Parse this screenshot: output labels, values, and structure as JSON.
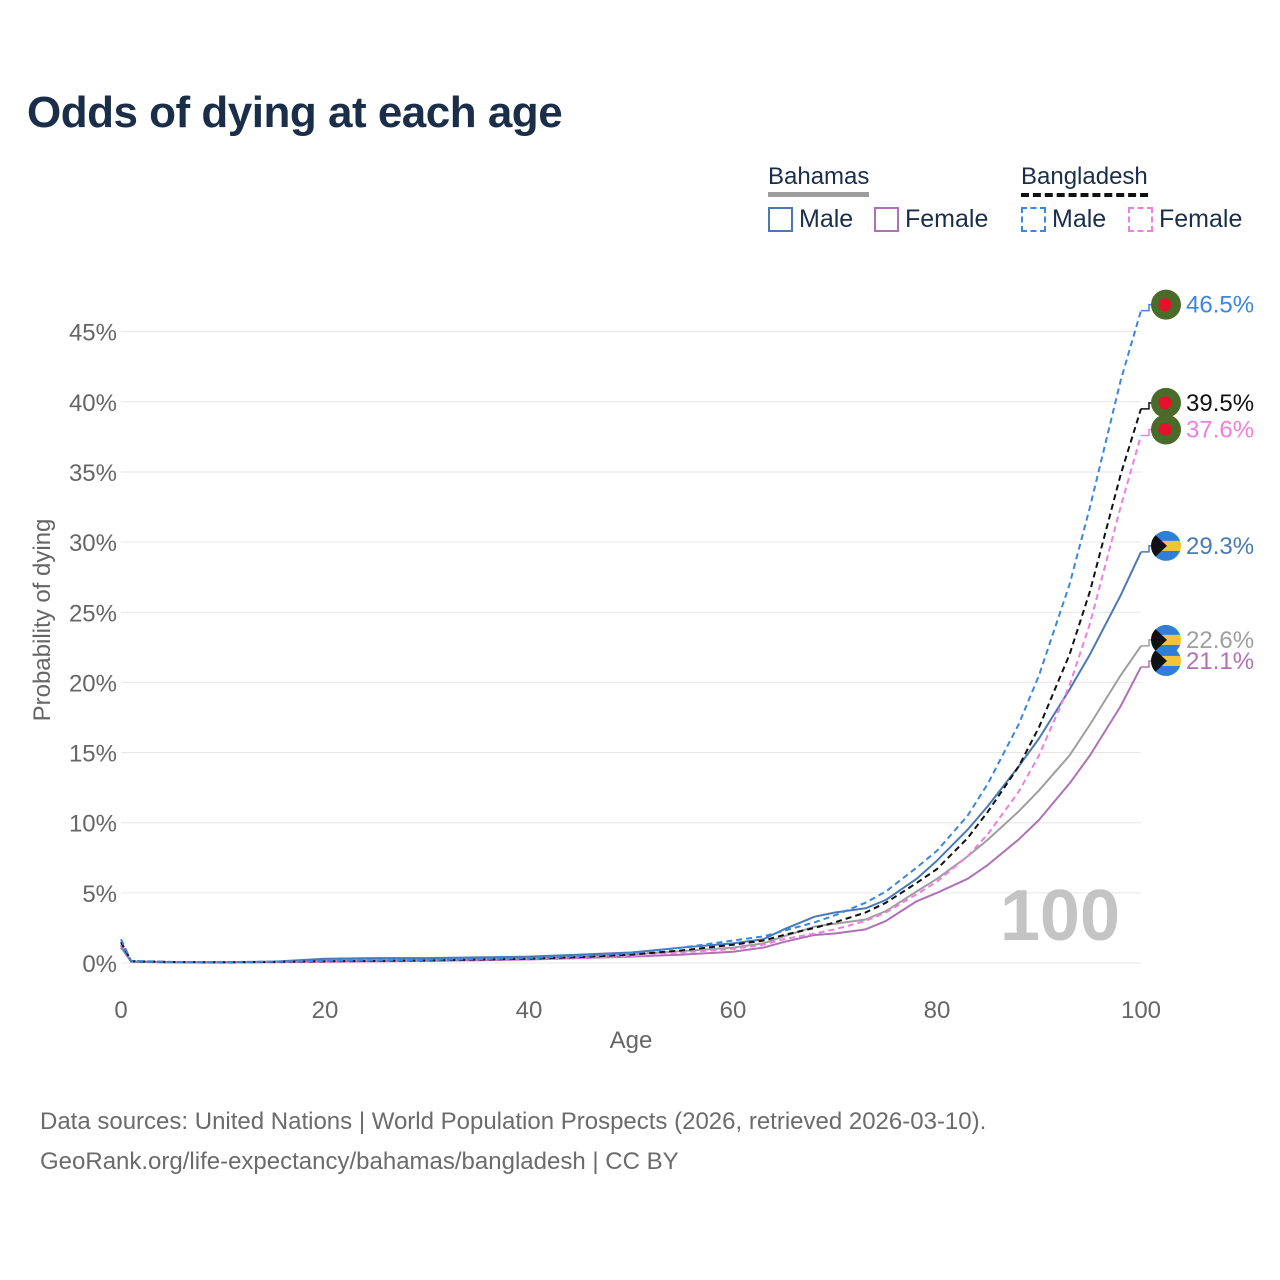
{
  "title": "Odds of dying at each age",
  "legend": {
    "groups": [
      {
        "name": "Bahamas",
        "style": "solid",
        "items": [
          {
            "label": "Male",
            "color": "#4a7ab5"
          },
          {
            "label": "Female",
            "color": "#b070b5"
          }
        ]
      },
      {
        "name": "Bangladesh",
        "style": "dashed",
        "items": [
          {
            "label": "Male",
            "color": "#3a86e0"
          },
          {
            "label": "Female",
            "color": "#f07ee0"
          }
        ]
      }
    ]
  },
  "footer": {
    "line1": "Data sources: United Nations | World Population Prospects (2026, retrieved 2026-03-10).",
    "line2": "GeoRank.org/life-expectancy/bahamas/bangladesh | CC BY"
  },
  "age_marker": "100",
  "chart_data": {
    "type": "line",
    "xlabel": "Age",
    "ylabel": "Probability of dying",
    "xlim": [
      0,
      100
    ],
    "ylim": [
      0,
      47
    ],
    "x_ticks": [
      0,
      20,
      40,
      60,
      80,
      100
    ],
    "y_ticks": [
      0,
      5,
      10,
      15,
      20,
      25,
      30,
      35,
      40,
      45
    ],
    "y_tick_labels": [
      "0%",
      "5%",
      "10%",
      "15%",
      "20%",
      "25%",
      "30%",
      "35%",
      "40%",
      "45%"
    ],
    "x": [
      0,
      1,
      5,
      10,
      15,
      20,
      25,
      30,
      35,
      40,
      45,
      50,
      55,
      60,
      63,
      65,
      68,
      70,
      73,
      75,
      78,
      80,
      83,
      85,
      88,
      90,
      93,
      95,
      98,
      100
    ],
    "series": [
      {
        "name": "Bahamas Male",
        "country": "Bahamas",
        "sex": "Male",
        "color": "#4a7ab5",
        "dash": "solid",
        "end_label": "29.3%",
        "values": [
          1.3,
          0.1,
          0.05,
          0.05,
          0.1,
          0.3,
          0.35,
          0.35,
          0.4,
          0.45,
          0.6,
          0.75,
          1.1,
          1.4,
          1.7,
          2.4,
          3.3,
          3.6,
          3.9,
          4.5,
          6.0,
          7.3,
          9.5,
          11.2,
          14.0,
          16.0,
          19.5,
          22.0,
          26.2,
          29.3
        ]
      },
      {
        "name": "Bahamas Female",
        "country": "Bahamas",
        "sex": "Female",
        "color": "#b070b5",
        "dash": "solid",
        "end_label": "21.1%",
        "values": [
          1.1,
          0.1,
          0.04,
          0.03,
          0.05,
          0.1,
          0.12,
          0.15,
          0.2,
          0.25,
          0.35,
          0.45,
          0.6,
          0.8,
          1.1,
          1.5,
          2.0,
          2.1,
          2.4,
          3.0,
          4.4,
          5.0,
          6.0,
          7.0,
          8.8,
          10.2,
          12.8,
          14.8,
          18.3,
          21.1
        ]
      },
      {
        "name": "Both sexes",
        "country": "Bahamas",
        "sex": "Both",
        "color": "#9e9e9e",
        "dash": "solid",
        "end_label": "22.6%",
        "values": [
          1.2,
          0.1,
          0.04,
          0.04,
          0.07,
          0.2,
          0.22,
          0.25,
          0.3,
          0.35,
          0.45,
          0.6,
          0.85,
          1.1,
          1.4,
          1.9,
          2.6,
          2.8,
          3.1,
          3.7,
          5.1,
          6.0,
          7.6,
          8.8,
          10.8,
          12.3,
          14.8,
          17.0,
          20.5,
          22.6
        ]
      },
      {
        "name": "Bangladesh Male",
        "country": "Bangladesh",
        "sex": "Male",
        "color": "#3a86e0",
        "dash": "dashed",
        "end_label": "46.5%",
        "values": [
          1.7,
          0.15,
          0.08,
          0.06,
          0.1,
          0.15,
          0.18,
          0.22,
          0.28,
          0.35,
          0.5,
          0.7,
          1.1,
          1.6,
          1.9,
          2.3,
          2.9,
          3.4,
          4.3,
          5.1,
          6.8,
          8.0,
          10.5,
          12.8,
          17.0,
          20.5,
          27.0,
          32.5,
          41.5,
          46.5
        ]
      },
      {
        "name": "Bangladesh Both",
        "country": "Bangladesh",
        "sex": "Both",
        "color": "#111111",
        "dash": "dashed",
        "end_label": "39.5%",
        "values": [
          1.5,
          0.13,
          0.07,
          0.05,
          0.08,
          0.12,
          0.15,
          0.18,
          0.24,
          0.3,
          0.42,
          0.6,
          0.9,
          1.3,
          1.6,
          2.0,
          2.5,
          2.9,
          3.6,
          4.3,
          5.7,
          6.7,
          8.9,
          10.8,
          14.0,
          16.8,
          22.0,
          26.5,
          34.8,
          39.5
        ]
      },
      {
        "name": "Bangladesh Female",
        "country": "Bangladesh",
        "sex": "Female",
        "color": "#f07ee0",
        "dash": "dashed",
        "end_label": "37.6%",
        "values": [
          1.4,
          0.12,
          0.06,
          0.05,
          0.07,
          0.1,
          0.12,
          0.15,
          0.2,
          0.25,
          0.35,
          0.5,
          0.75,
          1.0,
          1.3,
          1.7,
          2.1,
          2.4,
          3.0,
          3.6,
          4.9,
          5.8,
          7.6,
          9.2,
          12.2,
          14.8,
          19.8,
          24.2,
          32.5,
          37.6
        ]
      }
    ]
  }
}
